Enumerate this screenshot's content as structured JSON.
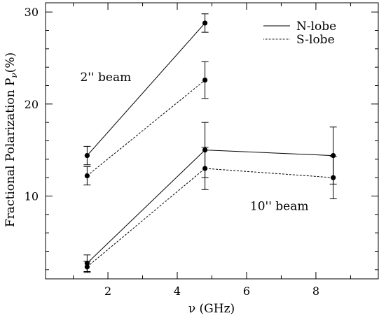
{
  "chart_data": {
    "type": "line",
    "xlabel": "ν (GHz)",
    "ylabel_text": "Fractional Polarization P",
    "ylabel_sub": "ν",
    "ylabel_unit": "(%)",
    "xlim": [
      0.2,
      9.8
    ],
    "ylim": [
      1,
      31
    ],
    "x_ticks": [
      2,
      4,
      6,
      8
    ],
    "y_ticks": [
      10,
      20,
      30
    ],
    "x_minor_step": 1,
    "y_minor_step": 2,
    "grid": false,
    "legend_position": "top-right",
    "annotations": [
      {
        "text": "2'' beam",
        "x": 1.2,
        "y": 22.5
      },
      {
        "text": "10'' beam",
        "x": 6.1,
        "y": 8.5
      }
    ],
    "series": [
      {
        "name": "N-lobe",
        "group": "2'' beam",
        "dash": "solid",
        "x": [
          1.4,
          4.8
        ],
        "y": [
          14.4,
          28.8
        ],
        "err": [
          [
            1.0,
            1.0
          ],
          [
            1.0,
            1.0
          ]
        ]
      },
      {
        "name": "S-lobe",
        "group": "2'' beam",
        "dash": "dotted",
        "x": [
          1.4,
          4.8
        ],
        "y": [
          12.2,
          22.6
        ],
        "err": [
          [
            1.0,
            1.0
          ],
          [
            2.0,
            2.0
          ]
        ]
      },
      {
        "name": "N-lobe",
        "group": "10'' beam",
        "dash": "solid",
        "x": [
          1.4,
          4.8,
          8.5
        ],
        "y": [
          2.7,
          15.0,
          14.4
        ],
        "err": [
          [
            0.9,
            0.9
          ],
          [
            3.0,
            3.0
          ],
          [
            3.1,
            3.1
          ]
        ]
      },
      {
        "name": "S-lobe",
        "group": "10'' beam",
        "dash": "dotted",
        "x": [
          1.4,
          4.8,
          8.5
        ],
        "y": [
          2.3,
          13.0,
          12.0
        ],
        "err": [
          [
            0.6,
            0.6
          ],
          [
            2.3,
            2.3
          ],
          [
            2.3,
            2.3
          ]
        ]
      }
    ],
    "legend": [
      {
        "label": "N-lobe",
        "dash": "solid"
      },
      {
        "label": "S-lobe",
        "dash": "dotted"
      }
    ]
  }
}
